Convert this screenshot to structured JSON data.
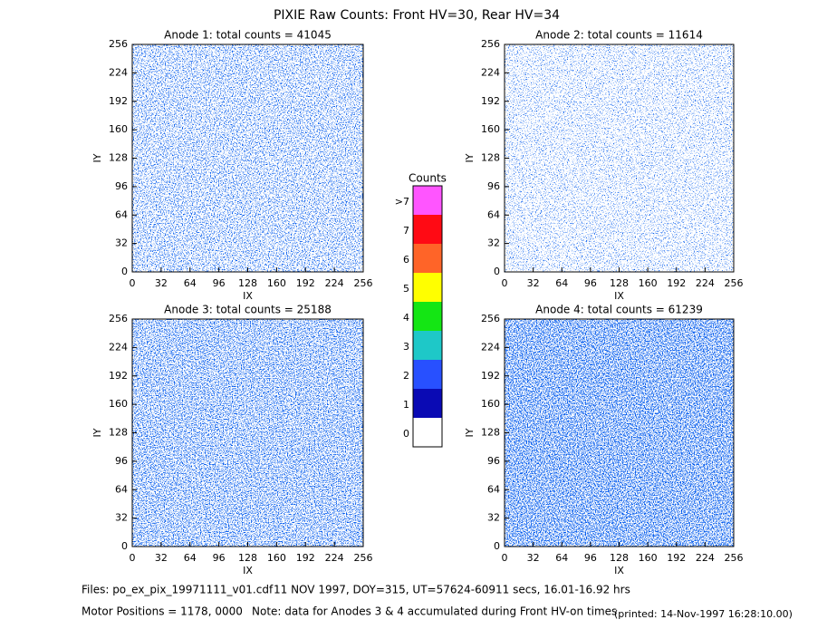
{
  "title": "PIXIE Raw Counts:  Front HV=30, Rear HV=34",
  "chart_data": [
    {
      "type": "heatmap",
      "title": "Anode 1: total counts = 41045",
      "xlabel": "IX",
      "ylabel": "IY",
      "xlim": [
        0,
        256
      ],
      "ylim": [
        0,
        256
      ],
      "xticks": [
        0,
        32,
        64,
        96,
        128,
        160,
        192,
        224,
        256
      ],
      "yticks": [
        0,
        32,
        64,
        96,
        128,
        160,
        192,
        224,
        256
      ]
    },
    {
      "type": "heatmap",
      "title": "Anode 2: total counts = 11614",
      "xlabel": "IX",
      "ylabel": "IY",
      "xlim": [
        0,
        256
      ],
      "ylim": [
        0,
        256
      ],
      "xticks": [
        0,
        32,
        64,
        96,
        128,
        160,
        192,
        224,
        256
      ],
      "yticks": [
        0,
        32,
        64,
        96,
        128,
        160,
        192,
        224,
        256
      ]
    },
    {
      "type": "heatmap",
      "title": "Anode 3: total counts = 25188",
      "xlabel": "IX",
      "ylabel": "IY",
      "xlim": [
        0,
        256
      ],
      "ylim": [
        0,
        256
      ],
      "xticks": [
        0,
        32,
        64,
        96,
        128,
        160,
        192,
        224,
        256
      ],
      "yticks": [
        0,
        32,
        64,
        96,
        128,
        160,
        192,
        224,
        256
      ]
    },
    {
      "type": "heatmap",
      "title": "Anode 4: total counts = 61239",
      "xlabel": "IX",
      "ylabel": "IY",
      "xlim": [
        0,
        256
      ],
      "ylim": [
        0,
        256
      ],
      "xticks": [
        0,
        32,
        64,
        96,
        128,
        160,
        192,
        224,
        256
      ],
      "yticks": [
        0,
        32,
        64,
        96,
        128,
        160,
        192,
        224,
        256
      ]
    }
  ],
  "colorbar": {
    "title": "Counts",
    "labels": [
      0,
      1,
      2,
      3,
      4,
      5,
      6,
      7,
      ">7"
    ],
    "colors": [
      "#ffffff",
      "#0a0ab4",
      "#2850ff",
      "#1ec8c8",
      "#14e614",
      "#ffff00",
      "#ff6428",
      "#ff0a14",
      "#ff55ff"
    ]
  },
  "footer": {
    "files": "Files: po_ex_pix_19971111_v01.cdf",
    "info": "11 NOV 1997, DOY=315, UT=57624-60911 secs, 16.01-16.92 hrs",
    "motor": "Motor Positions = 1178, 0000",
    "note": "Note: data for Anodes 3 & 4 accumulated during Front HV-on times",
    "printed": "(printed: 14-Nov-1997 16:28:10.00)"
  }
}
